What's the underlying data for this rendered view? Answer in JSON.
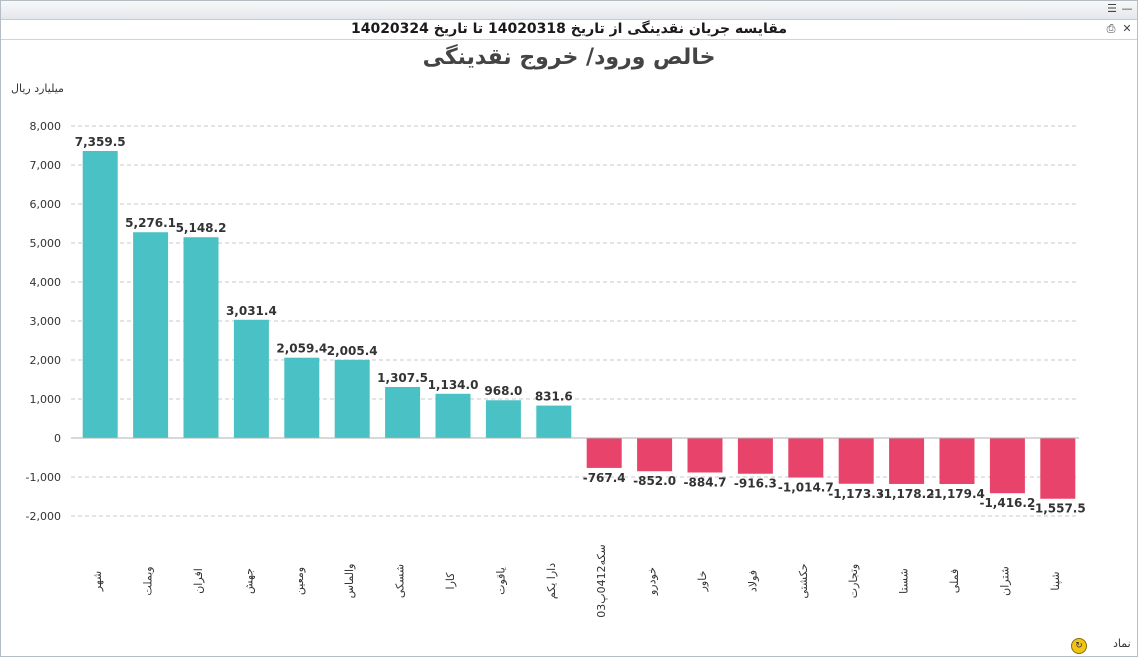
{
  "window": {
    "title_prefix": "مقایسه جریان نقدینگی از تاریخ",
    "from_date": "14020318",
    "to_word": "تا تاریخ",
    "to_date": "14020324",
    "controls": [
      "menu-icon",
      "minimize-icon",
      "print-icon",
      "close-icon"
    ]
  },
  "chart_data": {
    "type": "bar",
    "title": "خالص ورود/ خروج نقدینگی",
    "ylabel": "میلیارد ریال",
    "xlabel": "نماد",
    "ylim": [
      -2000,
      8000
    ],
    "yticks": [
      8000,
      7000,
      6000,
      5000,
      4000,
      3000,
      2000,
      1000,
      0,
      -1000,
      -2000
    ],
    "ytick_labels": [
      "8,000",
      "7,000",
      "6,000",
      "5,000",
      "4,000",
      "3,000",
      "2,000",
      "1,000",
      "0",
      "-1,000",
      "-2,000"
    ],
    "grid": true,
    "categories": [
      "شهر",
      "وبملت",
      "افران",
      "جهش",
      "ومعین",
      "والماس",
      "شسکی",
      "کارا",
      "یاقوت",
      "دارا یکم",
      "سکه0412پ03",
      "خودرو",
      "خاور",
      "فولاد",
      "حکشتی",
      "وتجارت",
      "شستا",
      "فملی",
      "شتران",
      "شپنا"
    ],
    "values": [
      7359.5,
      5276.1,
      5148.2,
      3031.4,
      2059.4,
      2005.4,
      1307.5,
      1134.0,
      968.0,
      831.6,
      -767.4,
      -852.0,
      -884.7,
      -916.3,
      -1014.7,
      -1173.3,
      -1178.2,
      -1179.4,
      -1416.2,
      -1557.5
    ],
    "value_labels": [
      "7,359.5",
      "5,276.1",
      "5,148.2",
      "3,031.4",
      "2,059.4",
      "2,005.4",
      "1,307.5",
      "1,134.0",
      "968.0",
      "831.6",
      "-767.4",
      "-852.0",
      "-884.7",
      "-916.3",
      "-1,014.7",
      "-1,173.3",
      "-1,178.2",
      "-1,179.4",
      "-1,416.2",
      "-1,557.5"
    ],
    "colors": {
      "positive": "#49c1c5",
      "negative": "#e8436a",
      "grid": "#c8c8c8"
    }
  }
}
